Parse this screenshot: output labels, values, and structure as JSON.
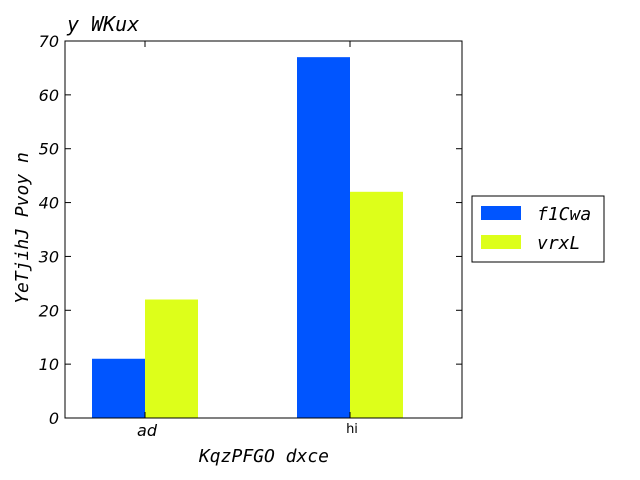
{
  "chart_data": {
    "type": "bar",
    "title": "y WKux",
    "xlabel": "KqzPFGO dxce",
    "ylabel": "YeTjihJ Pvoy n",
    "categories": [
      "ad",
      "hi"
    ],
    "series": [
      {
        "name": "f1Cwa",
        "values": [
          11,
          67
        ],
        "color": "#0055ff"
      },
      {
        "name": "vrxL",
        "values": [
          22,
          42
        ],
        "color": "#ddff1a"
      }
    ],
    "ylim": [
      0,
      70
    ],
    "yticks": [
      "0",
      "10",
      "20",
      "30",
      "40",
      "50",
      "60",
      "70"
    ],
    "grid": false,
    "legend_position": "right"
  }
}
